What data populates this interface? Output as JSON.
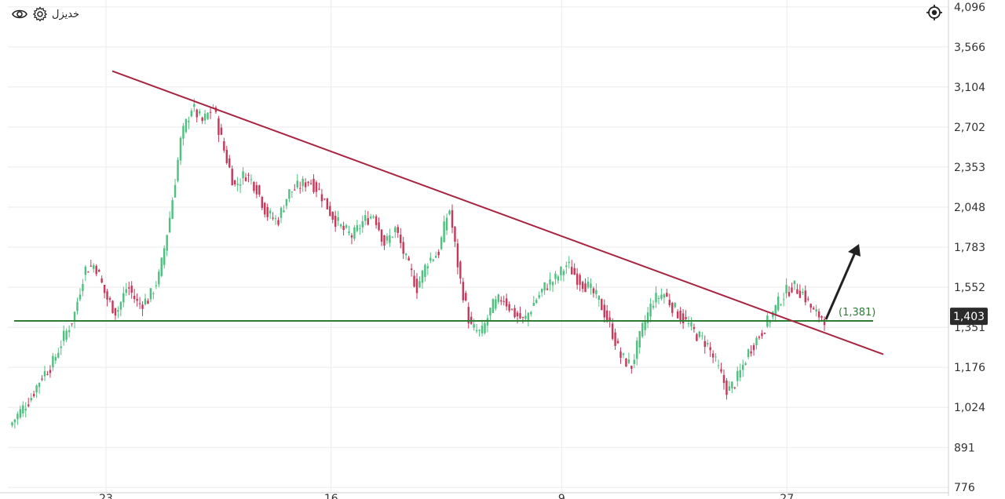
{
  "toolbar": {
    "instrument_label": "خدیزل",
    "settings_icon": "gear-icon",
    "visibility_icon": "eye-icon",
    "target_icon": "crosshair-icon"
  },
  "colors": {
    "up": "#4fc07f",
    "down": "#c8385a",
    "trendline": "#a8243f",
    "support": "#2e7d32",
    "arrow": "#222222",
    "grid": "#ebebeb",
    "price_badge_bg": "#2b2b2b",
    "price_badge_fg": "#ffffff"
  },
  "chart_data": {
    "type": "candlestick",
    "y_scale": "log",
    "ylim": [
      770,
      4150
    ],
    "y_ticks": [
      "4,096",
      "3,566",
      "3,104",
      "2,702",
      "2,353",
      "2,048",
      "1,783",
      "1,552",
      "1,351",
      "1,176",
      "1,024",
      "891",
      "776"
    ],
    "x_tick_labels": [
      "23",
      "16",
      "9",
      "27"
    ],
    "current_price_label": "1,403",
    "current_price": 1403,
    "annotation_text": "(1,381)",
    "support_level": 1381,
    "trendline": {
      "from_price": 3280,
      "to_price": 1230
    },
    "arrow": "breakout upward",
    "close_path": [
      [
        0,
        960
      ],
      [
        4,
        1060
      ],
      [
        6,
        1140
      ],
      [
        8,
        1190
      ],
      [
        10,
        1300
      ],
      [
        12,
        1400
      ],
      [
        14,
        1650
      ],
      [
        16,
        1680
      ],
      [
        18,
        1500
      ],
      [
        20,
        1420
      ],
      [
        22,
        1560
      ],
      [
        24,
        1460
      ],
      [
        26,
        1490
      ],
      [
        28,
        1620
      ],
      [
        30,
        2000
      ],
      [
        32,
        2600
      ],
      [
        34,
        2900
      ],
      [
        36,
        2750
      ],
      [
        38,
        2900
      ],
      [
        40,
        2500
      ],
      [
        42,
        2200
      ],
      [
        44,
        2300
      ],
      [
        46,
        2200
      ],
      [
        48,
        2000
      ],
      [
        50,
        1950
      ],
      [
        52,
        2150
      ],
      [
        54,
        2200
      ],
      [
        56,
        2250
      ],
      [
        58,
        2150
      ],
      [
        60,
        2000
      ],
      [
        62,
        1900
      ],
      [
        64,
        1850
      ],
      [
        66,
        1950
      ],
      [
        68,
        2000
      ],
      [
        70,
        1800
      ],
      [
        72,
        1900
      ],
      [
        74,
        1700
      ],
      [
        76,
        1550
      ],
      [
        78,
        1700
      ],
      [
        80,
        1750
      ],
      [
        82,
        2050
      ],
      [
        84,
        1600
      ],
      [
        86,
        1351
      ],
      [
        88,
        1320
      ],
      [
        90,
        1450
      ],
      [
        92,
        1500
      ],
      [
        94,
        1420
      ],
      [
        96,
        1380
      ],
      [
        98,
        1480
      ],
      [
        100,
        1560
      ],
      [
        102,
        1600
      ],
      [
        104,
        1680
      ],
      [
        106,
        1600
      ],
      [
        108,
        1550
      ],
      [
        110,
        1480
      ],
      [
        112,
        1360
      ],
      [
        114,
        1220
      ],
      [
        116,
        1180
      ],
      [
        118,
        1340
      ],
      [
        120,
        1480
      ],
      [
        122,
        1520
      ],
      [
        124,
        1440
      ],
      [
        126,
        1380
      ],
      [
        128,
        1320
      ],
      [
        130,
        1280
      ],
      [
        132,
        1180
      ],
      [
        134,
        1080
      ],
      [
        136,
        1140
      ],
      [
        138,
        1250
      ],
      [
        140,
        1320
      ],
      [
        142,
        1400
      ],
      [
        144,
        1500
      ],
      [
        146,
        1560
      ],
      [
        148,
        1520
      ],
      [
        150,
        1420
      ],
      [
        152,
        1395
      ]
    ]
  }
}
